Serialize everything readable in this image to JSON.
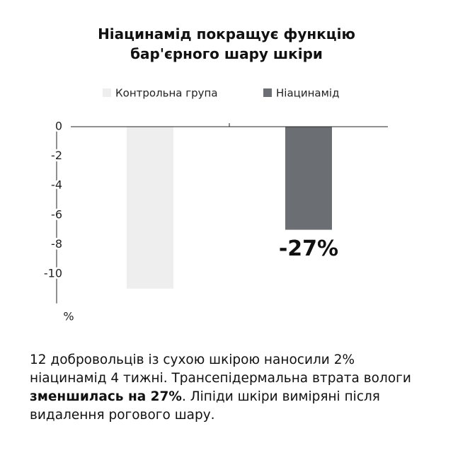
{
  "chart_data": {
    "type": "bar",
    "title": "Ніацинамід покращує функцію бар'єрного шару шкіри",
    "categories": [
      null,
      null
    ],
    "series": [
      {
        "name": "Контрольна група",
        "color": "#eeeeee",
        "values": [
          -11,
          null
        ]
      },
      {
        "name": "Ніацинамід",
        "color": "#6b6e73",
        "values": [
          null,
          -7
        ]
      }
    ],
    "annotation": "-27%",
    "y_label": "%",
    "ylim": [
      -12,
      0
    ],
    "yticks": [
      0,
      -2,
      -4,
      -6,
      -8,
      -10
    ]
  },
  "description": [
    "12 добровольців із сухою шкірою наносили 2% ніацинамід 4 тижні. Трансепідермальна втрата вологи ",
    "зменшилась на 27%",
    ". Ліпіди шкіри виміряні після видалення рогового шару."
  ]
}
